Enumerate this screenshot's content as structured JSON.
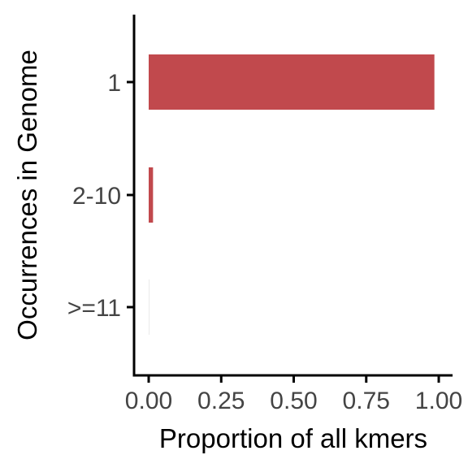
{
  "chart_data": {
    "type": "bar",
    "orientation": "horizontal",
    "categories": [
      "1",
      "2-10",
      ">=11"
    ],
    "values": [
      0.985,
      0.015,
      0.001
    ],
    "xlabel": "Proportion of all kmers",
    "ylabel": "Occurrences in Genome",
    "xlim": [
      0,
      1
    ],
    "x_ticks": [
      "0.00",
      "0.25",
      "0.50",
      "0.75",
      "1.00"
    ],
    "grid": false,
    "bar_color": "#c1494d",
    "axis_color": "#000000",
    "tick_label_color": "#444444"
  }
}
